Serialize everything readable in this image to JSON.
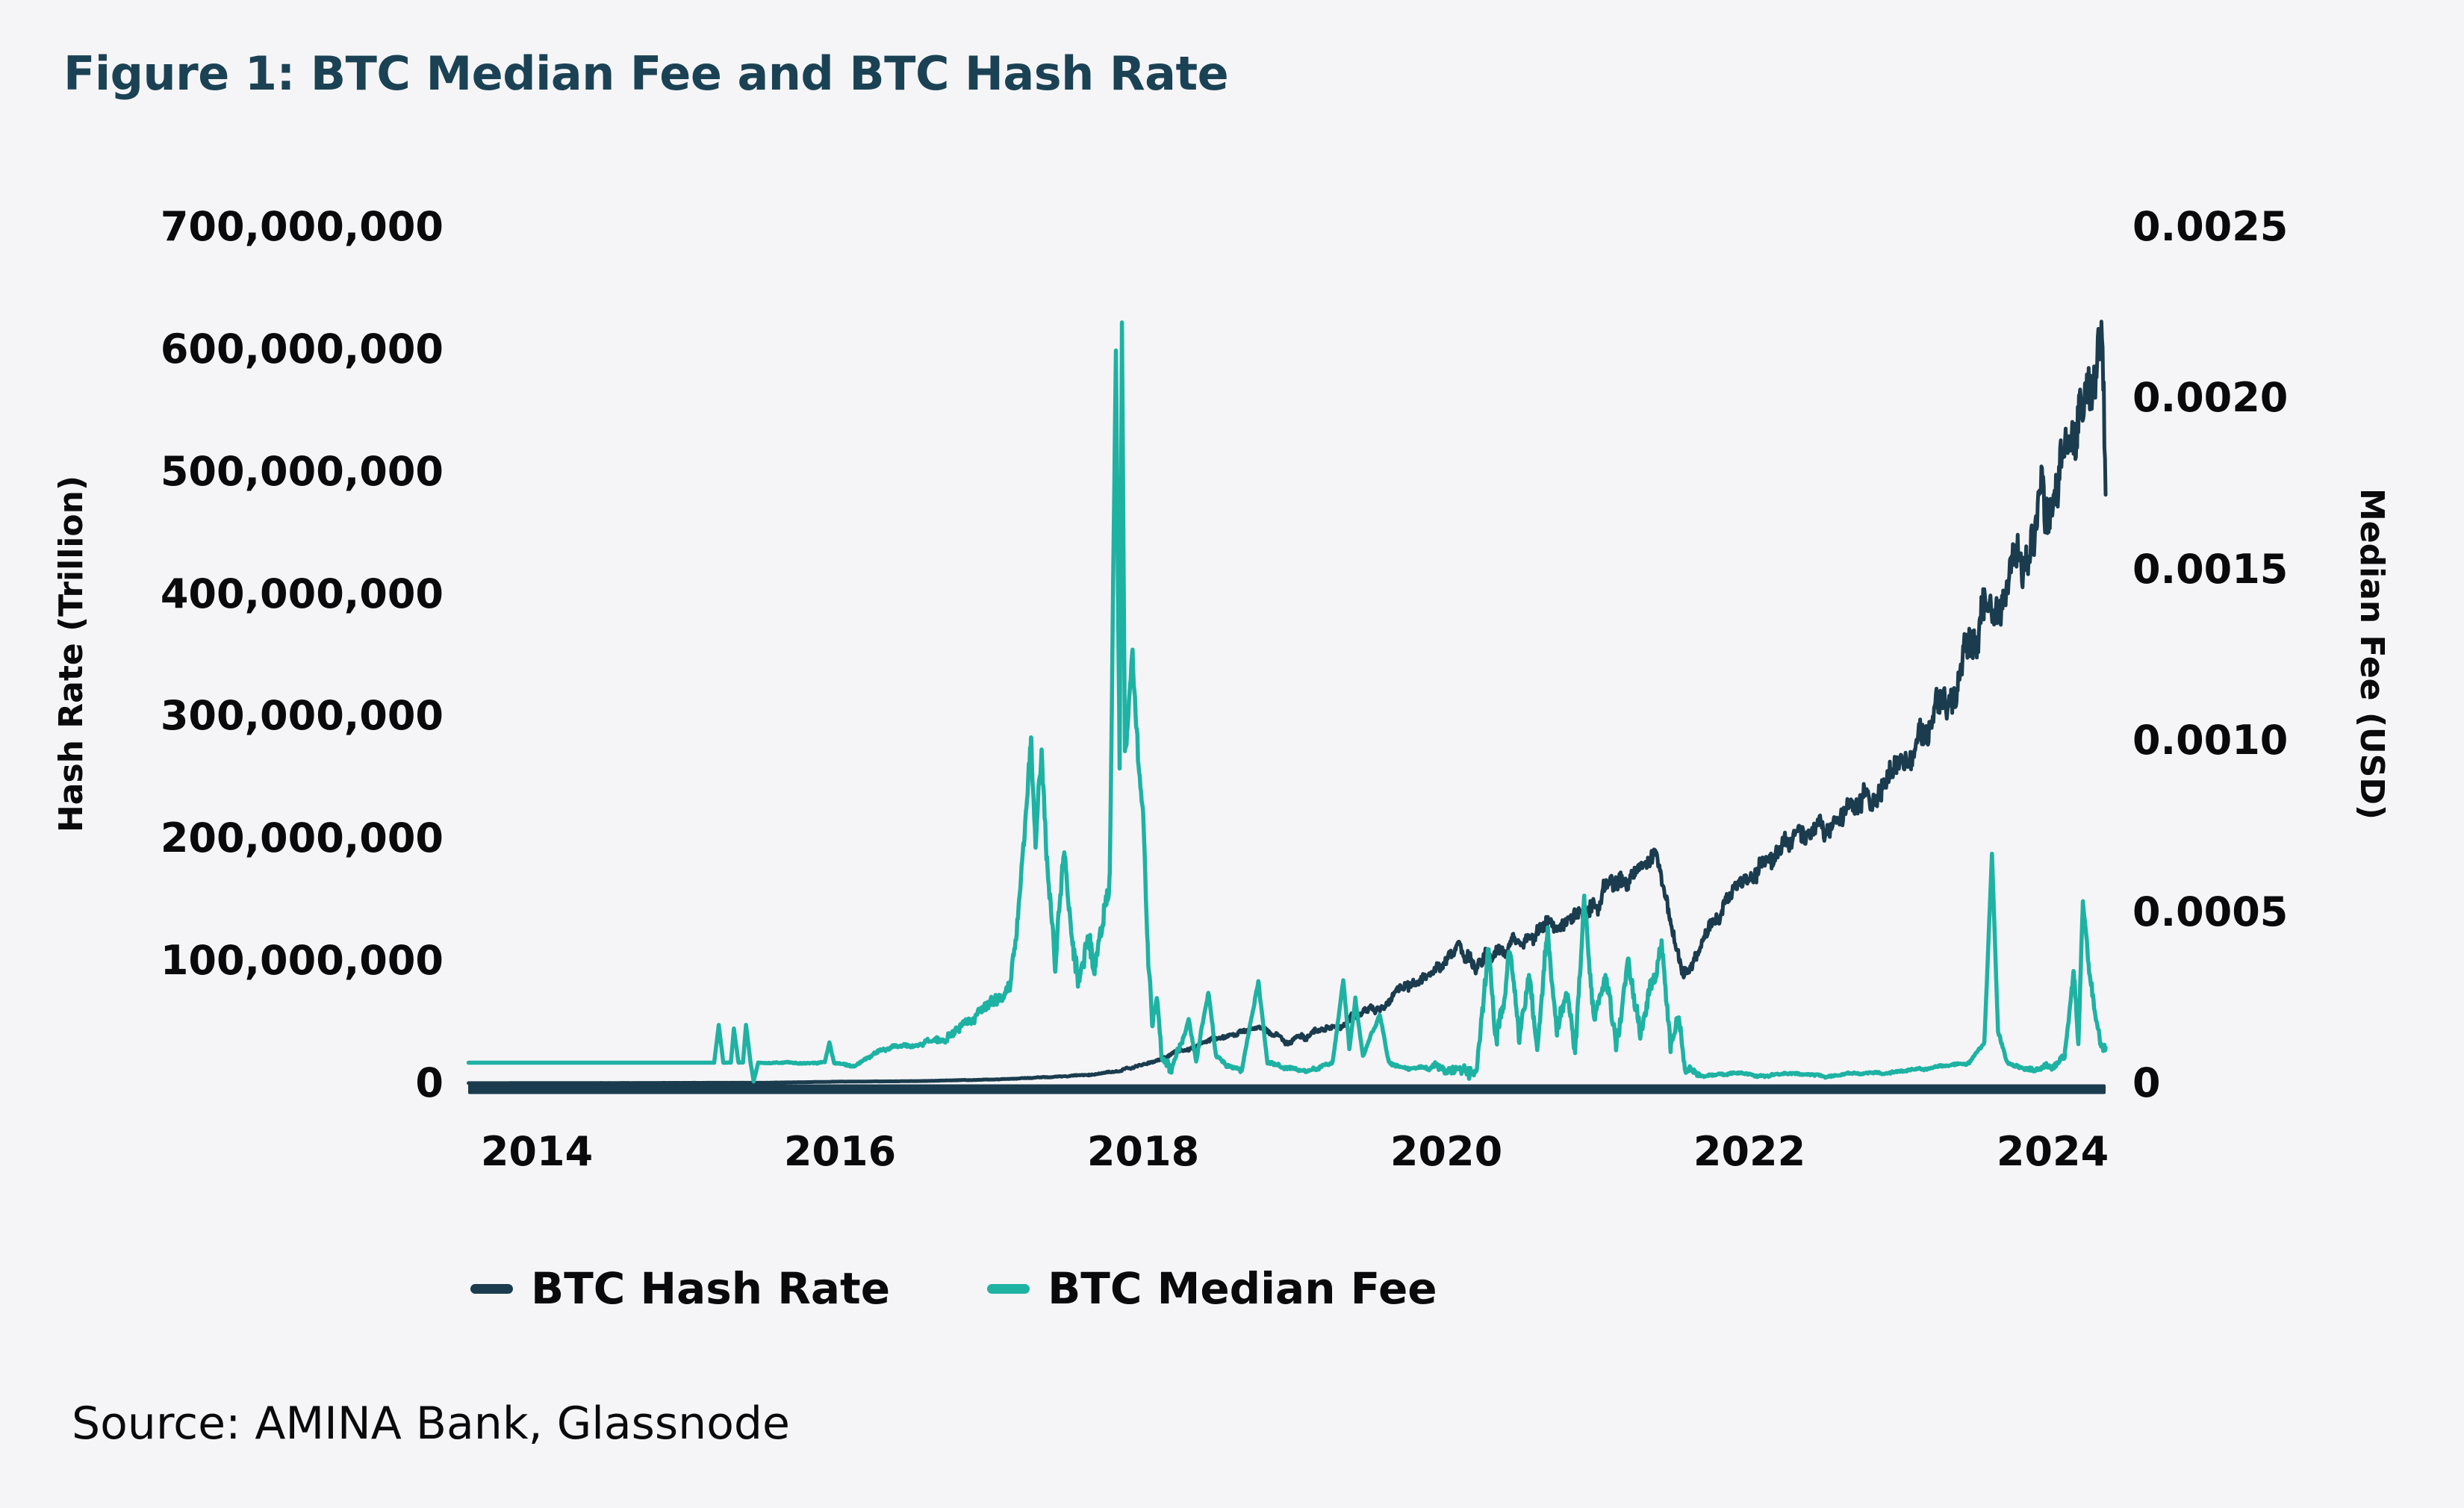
{
  "figure": {
    "title": "Figure 1: BTC Median Fee and BTC Hash Rate",
    "title_color": "#1b4254",
    "source": "Source: AMINA Bank, Glassnode",
    "background": "#f5f5f7"
  },
  "legend": {
    "items": [
      {
        "label": "BTC Hash Rate",
        "color": "#1b3c4e"
      },
      {
        "label": "BTC Median Fee",
        "color": "#1eb2a3"
      }
    ]
  },
  "chart_data": {
    "type": "line",
    "title": "Figure 1: BTC Median Fee and BTC Hash Rate",
    "grid": false,
    "legend_position": "bottom-left",
    "x_axis": {
      "range": [
        2013.55,
        2024.35
      ],
      "ticks": [
        2014,
        2016,
        2018,
        2020,
        2022,
        2024
      ]
    },
    "left_axis": {
      "title": "Hash Rate (Trillion)",
      "range": [
        0,
        700000000
      ],
      "tick_values": [
        0,
        100000000,
        200000000,
        300000000,
        400000000,
        500000000,
        600000000,
        700000000
      ],
      "tick_labels": [
        "0",
        "100,000,000",
        "200,000,000",
        "300,000,000",
        "400,000,000",
        "500,000,000",
        "600,000,000",
        "700,000,000"
      ]
    },
    "right_axis": {
      "title": "Median Fee (USD)",
      "range": [
        0,
        0.0025
      ],
      "tick_values": [
        0,
        0.0005,
        0.001,
        0.0015,
        0.002,
        0.0025
      ],
      "tick_labels": [
        "0",
        "0.0005",
        "0.0010",
        "0.0015",
        "0.0020",
        "0.0025"
      ]
    },
    "series": [
      {
        "name": "BTC Hash Rate",
        "axis": "left",
        "color": "#1b3c4e",
        "min": 50000,
        "points": [
          [
            2013.55,
            50000
          ],
          [
            2014.5,
            200000
          ],
          [
            2015.5,
            400000
          ],
          [
            2016.0,
            1300000
          ],
          [
            2016.5,
            1700000
          ],
          [
            2017.0,
            3000000
          ],
          [
            2017.3,
            4500000
          ],
          [
            2017.6,
            6500000
          ],
          [
            2017.8,
            9000000
          ],
          [
            2018.0,
            15000000
          ],
          [
            2018.15,
            22000000
          ],
          [
            2018.3,
            28000000
          ],
          [
            2018.45,
            35000000
          ],
          [
            2018.6,
            41000000
          ],
          [
            2018.75,
            46000000
          ],
          [
            2018.85,
            41000000
          ],
          [
            2018.95,
            33000000
          ],
          [
            2019.05,
            38000000
          ],
          [
            2019.2,
            43000000
          ],
          [
            2019.35,
            50000000
          ],
          [
            2019.5,
            60000000
          ],
          [
            2019.62,
            68000000
          ],
          [
            2019.75,
            80000000
          ],
          [
            2019.9,
            93000000
          ],
          [
            2020.0,
            102000000
          ],
          [
            2020.1,
            110000000
          ],
          [
            2020.2,
            95000000
          ],
          [
            2020.3,
            105000000
          ],
          [
            2020.45,
            115000000
          ],
          [
            2020.6,
            122000000
          ],
          [
            2020.75,
            130000000
          ],
          [
            2020.9,
            136000000
          ],
          [
            2021.0,
            148000000
          ],
          [
            2021.1,
            160000000
          ],
          [
            2021.2,
            168000000
          ],
          [
            2021.3,
            176000000
          ],
          [
            2021.38,
            188000000
          ],
          [
            2021.44,
            160000000
          ],
          [
            2021.5,
            120000000
          ],
          [
            2021.56,
            92000000
          ],
          [
            2021.62,
            100000000
          ],
          [
            2021.7,
            118000000
          ],
          [
            2021.8,
            138000000
          ],
          [
            2021.9,
            155000000
          ],
          [
            2022.0,
            170000000
          ],
          [
            2022.15,
            188000000
          ],
          [
            2022.3,
            200000000
          ],
          [
            2022.45,
            210000000
          ],
          [
            2022.6,
            218000000
          ],
          [
            2022.75,
            232000000
          ],
          [
            2022.9,
            248000000
          ],
          [
            2023.05,
            270000000
          ],
          [
            2023.2,
            300000000
          ],
          [
            2023.35,
            330000000
          ],
          [
            2023.5,
            365000000
          ],
          [
            2023.65,
            400000000
          ],
          [
            2023.8,
            430000000
          ],
          [
            2023.95,
            475000000
          ],
          [
            2024.1,
            520000000
          ],
          [
            2024.2,
            550000000
          ],
          [
            2024.28,
            590000000
          ],
          [
            2024.33,
            607000000
          ],
          [
            2024.35,
            450000000
          ]
        ],
        "noise": [
          [
            2013.55,
            0
          ],
          [
            2016.5,
            100000
          ],
          [
            2017.5,
            500000
          ],
          [
            2018.0,
            1500000
          ],
          [
            2018.5,
            3000000
          ],
          [
            2019.0,
            3500000
          ],
          [
            2019.5,
            6000000
          ],
          [
            2020.0,
            9000000
          ],
          [
            2020.5,
            10000000
          ],
          [
            2021.0,
            12000000
          ],
          [
            2021.4,
            12000000
          ],
          [
            2021.6,
            8000000
          ],
          [
            2022.0,
            12000000
          ],
          [
            2022.5,
            14000000
          ],
          [
            2023.0,
            18000000
          ],
          [
            2023.5,
            28000000
          ],
          [
            2024.0,
            38000000
          ],
          [
            2024.35,
            45000000
          ]
        ]
      },
      {
        "name": "BTC Median Fee",
        "axis": "right",
        "color": "#1eb2a3",
        "min": 2e-06,
        "points": [
          [
            2013.55,
            6e-05
          ],
          [
            2014.5,
            6e-05
          ],
          [
            2015.0,
            6e-05
          ],
          [
            2015.17,
            6e-05
          ],
          [
            2015.2,
            0.00017
          ],
          [
            2015.23,
            6e-05
          ],
          [
            2015.28,
            6e-05
          ],
          [
            2015.3,
            0.00016
          ],
          [
            2015.33,
            6e-05
          ],
          [
            2015.36,
            6e-05
          ],
          [
            2015.38,
            0.00017
          ],
          [
            2015.41,
            6e-05
          ],
          [
            2015.43,
            5e-06
          ],
          [
            2015.46,
            6e-05
          ],
          [
            2015.9,
            6e-05
          ],
          [
            2015.93,
            0.00012
          ],
          [
            2015.96,
            6e-05
          ],
          [
            2016.1,
            5e-05
          ],
          [
            2016.2,
            8e-05
          ],
          [
            2016.3,
            0.0001
          ],
          [
            2016.45,
            0.00011
          ],
          [
            2016.6,
            0.00012
          ],
          [
            2016.75,
            0.00014
          ],
          [
            2016.85,
            0.00018
          ],
          [
            2016.95,
            0.00022
          ],
          [
            2017.05,
            0.00024
          ],
          [
            2017.12,
            0.0003
          ],
          [
            2017.18,
            0.0005
          ],
          [
            2017.23,
            0.0008
          ],
          [
            2017.26,
            0.00104
          ],
          [
            2017.29,
            0.0007
          ],
          [
            2017.33,
            0.00095
          ],
          [
            2017.37,
            0.0006
          ],
          [
            2017.42,
            0.00035
          ],
          [
            2017.48,
            0.00071
          ],
          [
            2017.53,
            0.0004
          ],
          [
            2017.58,
            0.00026
          ],
          [
            2017.63,
            0.00045
          ],
          [
            2017.68,
            0.00032
          ],
          [
            2017.73,
            0.0005
          ],
          [
            2017.78,
            0.0006
          ],
          [
            2017.82,
            0.00211
          ],
          [
            2017.845,
            0.00095
          ],
          [
            2017.86,
            0.00226
          ],
          [
            2017.88,
            0.00096
          ],
          [
            2017.93,
            0.00125
          ],
          [
            2017.97,
            0.0009
          ],
          [
            2018.0,
            0.0008
          ],
          [
            2018.03,
            0.0004
          ],
          [
            2018.06,
            0.0002
          ],
          [
            2018.09,
            0.00028
          ],
          [
            2018.12,
            8e-05
          ],
          [
            2018.18,
            5e-05
          ],
          [
            2018.25,
            0.00012
          ],
          [
            2018.3,
            0.00018
          ],
          [
            2018.35,
            6e-05
          ],
          [
            2018.43,
            0.00027
          ],
          [
            2018.48,
            8e-05
          ],
          [
            2018.55,
            5e-05
          ],
          [
            2018.65,
            4e-05
          ],
          [
            2018.76,
            0.0003
          ],
          [
            2018.82,
            6e-05
          ],
          [
            2018.95,
            4e-05
          ],
          [
            2019.1,
            4e-05
          ],
          [
            2019.25,
            6e-05
          ],
          [
            2019.32,
            0.0003
          ],
          [
            2019.36,
            0.0001
          ],
          [
            2019.4,
            0.00025
          ],
          [
            2019.45,
            8e-05
          ],
          [
            2019.56,
            0.0002
          ],
          [
            2019.62,
            6e-05
          ],
          [
            2019.75,
            4e-05
          ],
          [
            2019.9,
            5e-05
          ],
          [
            2020.0,
            4e-05
          ],
          [
            2020.1,
            3e-05
          ],
          [
            2020.2,
            5e-05
          ],
          [
            2020.28,
            0.0004
          ],
          [
            2020.33,
            0.0001
          ],
          [
            2020.42,
            0.00038
          ],
          [
            2020.48,
            0.00012
          ],
          [
            2020.55,
            0.00032
          ],
          [
            2020.6,
            0.00012
          ],
          [
            2020.67,
            0.00045
          ],
          [
            2020.73,
            0.00015
          ],
          [
            2020.8,
            0.00028
          ],
          [
            2020.85,
            0.0001
          ],
          [
            2020.91,
            0.00055
          ],
          [
            2020.97,
            0.00018
          ],
          [
            2021.05,
            0.0003
          ],
          [
            2021.12,
            0.00012
          ],
          [
            2021.2,
            0.00035
          ],
          [
            2021.28,
            0.00015
          ],
          [
            2021.35,
            0.00027
          ],
          [
            2021.42,
            0.00043
          ],
          [
            2021.48,
            0.00012
          ],
          [
            2021.53,
            0.00018
          ],
          [
            2021.58,
            4e-05
          ],
          [
            2021.7,
            2e-05
          ],
          [
            2021.9,
            3e-05
          ],
          [
            2022.1,
            2e-05
          ],
          [
            2022.3,
            3e-05
          ],
          [
            2022.5,
            2e-05
          ],
          [
            2022.7,
            3e-05
          ],
          [
            2022.9,
            3e-05
          ],
          [
            2023.1,
            4e-05
          ],
          [
            2023.3,
            5e-05
          ],
          [
            2023.45,
            6e-05
          ],
          [
            2023.55,
            0.00012
          ],
          [
            2023.6,
            0.00067
          ],
          [
            2023.64,
            0.00015
          ],
          [
            2023.7,
            6e-05
          ],
          [
            2023.85,
            4e-05
          ],
          [
            2024.0,
            5e-05
          ],
          [
            2024.08,
            8e-05
          ],
          [
            2024.14,
            0.00033
          ],
          [
            2024.17,
            0.00012
          ],
          [
            2024.2,
            0.00055
          ],
          [
            2024.24,
            0.00035
          ],
          [
            2024.28,
            0.00022
          ],
          [
            2024.32,
            0.0001
          ],
          [
            2024.35,
            9e-05
          ]
        ],
        "noise": [
          [
            2013.55,
            0
          ],
          [
            2015.1,
            0
          ],
          [
            2016.0,
            4e-06
          ],
          [
            2016.5,
            1e-05
          ],
          [
            2017.0,
            3e-05
          ],
          [
            2017.5,
            6e-05
          ],
          [
            2018.0,
            5e-05
          ],
          [
            2018.3,
            1e-05
          ],
          [
            2019.0,
            8e-06
          ],
          [
            2019.8,
            6e-06
          ],
          [
            2020.3,
            4e-05
          ],
          [
            2021.5,
            4e-05
          ],
          [
            2021.7,
            5e-06
          ],
          [
            2023.4,
            5e-06
          ],
          [
            2023.8,
            8e-06
          ],
          [
            2024.1,
            2e-05
          ],
          [
            2024.35,
            3e-05
          ]
        ]
      }
    ]
  }
}
